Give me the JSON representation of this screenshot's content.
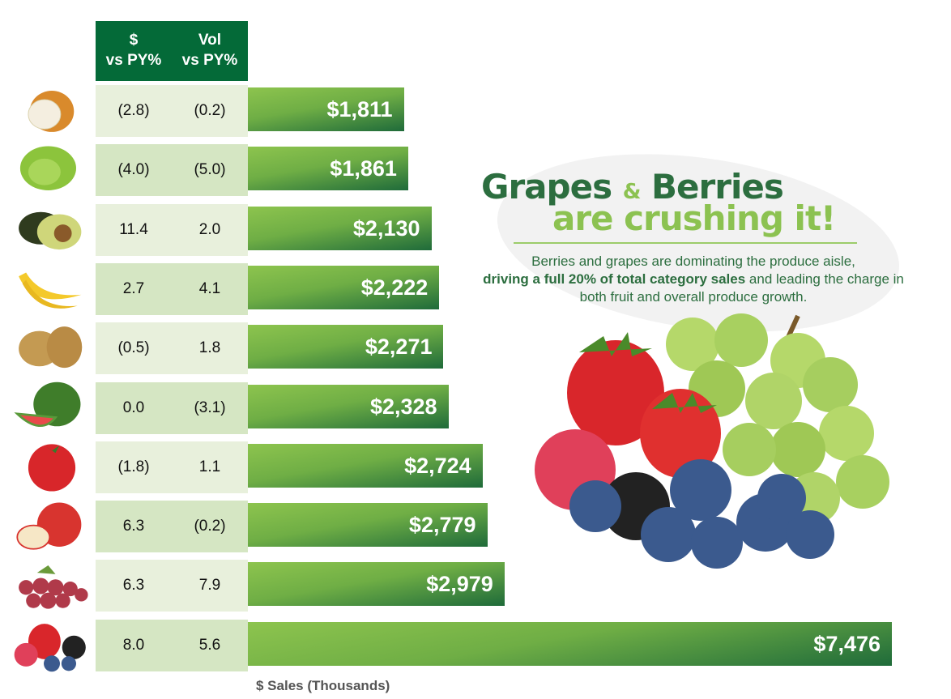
{
  "chart_data": {
    "type": "bar",
    "orientation": "horizontal",
    "xlabel": "$ Sales (Thousands)",
    "table_headers": [
      "$\nvs PY%",
      "Vol\nvs PY%"
    ],
    "categories_icons": [
      "onion-icon",
      "lettuce-icon",
      "avocado-icon",
      "banana-icon",
      "potato-icon",
      "watermelon-icon",
      "tomato-icon",
      "apple-icon",
      "grapes-icon",
      "berries-icon"
    ],
    "values": [
      1811,
      1861,
      2130,
      2222,
      2271,
      2328,
      2724,
      2779,
      2979,
      7476
    ],
    "value_labels": [
      "$1,811",
      "$1,861",
      "$2,130",
      "$2,222",
      "$2,271",
      "$2,328",
      "$2,724",
      "$2,779",
      "$2,979",
      "$7,476"
    ],
    "dollar_vs_py": [
      "(2.8)",
      "(4.0)",
      "11.4",
      "2.7",
      "(0.5)",
      "0.0",
      "(1.8)",
      "6.3",
      "6.3",
      "8.0"
    ],
    "vol_vs_py": [
      "(0.2)",
      "(5.0)",
      "2.0",
      "4.1",
      "1.8",
      "(3.1)",
      "1.1",
      "(0.2)",
      "7.9",
      "5.6"
    ],
    "colors": {
      "header": "#046a38",
      "row_light": "#e8f0dc",
      "row_dark": "#d5e6c3",
      "bar_light": "#8dc44e",
      "bar_dark": "#1f6b3a"
    }
  },
  "callout": {
    "title_a": "Grapes",
    "amp": "&",
    "title_b": "Berries",
    "subtitle": "are crushing it!",
    "body_pre": "Berries and grapes are dominating the produce aisle,",
    "body_bold": "driving a full 20% of total category sales",
    "body_post": "and leading the charge in both fruit and overall produce growth."
  }
}
